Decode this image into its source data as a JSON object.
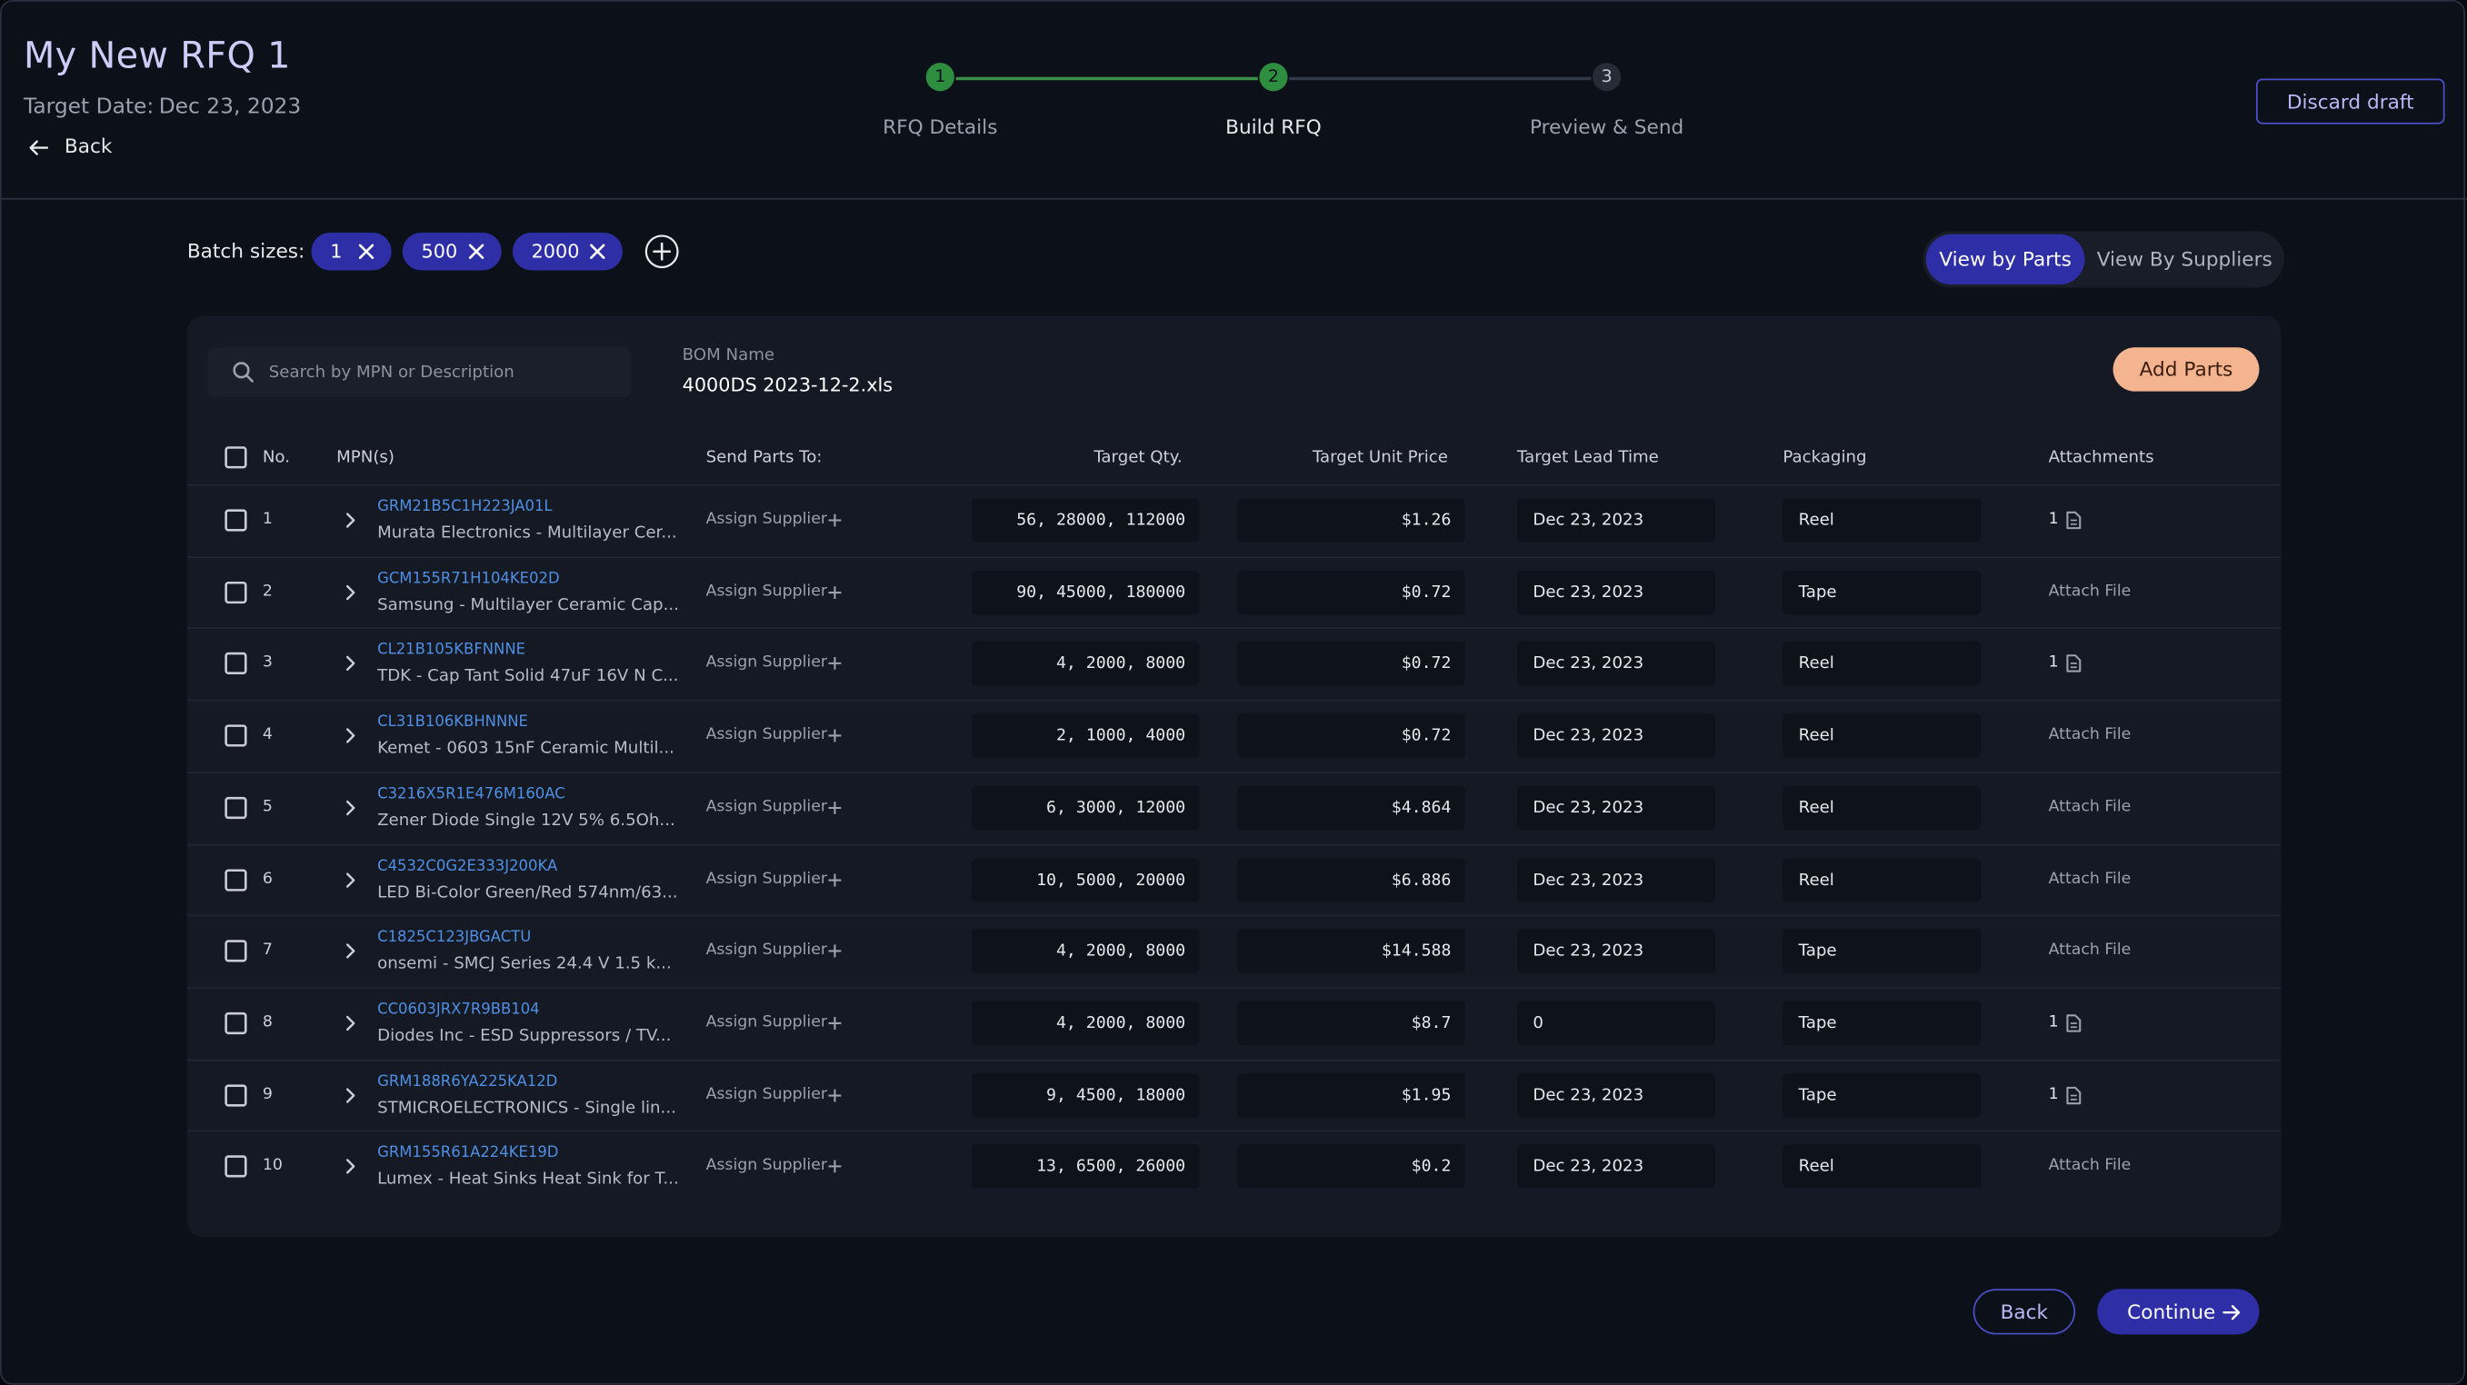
{
  "header": {
    "title": "My New RFQ 1",
    "target_date_label": "Target Date:",
    "target_date": "Dec 23, 2023",
    "back": "Back",
    "discard": "Discard draft"
  },
  "stepper": [
    {
      "number": "1",
      "label": "RFQ Details"
    },
    {
      "number": "2",
      "label": "Build RFQ"
    },
    {
      "number": "3",
      "label": "Preview & Send"
    }
  ],
  "batch": {
    "label": "Batch sizes:",
    "sizes": [
      "1",
      "500",
      "2000"
    ]
  },
  "view_toggle": [
    "View by Parts",
    "View By Suppliers"
  ],
  "toolbar": {
    "search_placeholder": "Search by MPN or Description",
    "bom_label": "BOM Name",
    "bom_name": "4000DS 2023-12-2.xls",
    "add_parts": "Add Parts"
  },
  "table": {
    "columns": [
      "No.",
      "MPN(s)",
      "Send Parts To:",
      "Target Qty.",
      "Target Unit Price",
      "Target Lead Time",
      "Packaging",
      "Attachments"
    ],
    "rows": [
      {
        "no": "1",
        "mpn": "GRM21B5C1H223JA01L",
        "description": "Murata Electronics - Multilayer Cer...",
        "send_to": "Assign Supplier",
        "qty": "56, 28000, 112000",
        "price": "$1.26",
        "lead_time": "Dec 23, 2023",
        "packaging": "Reel",
        "attachments": "1"
      },
      {
        "no": "2",
        "mpn": "GCM155R71H104KE02D",
        "description": "Samsung - Multilayer Ceramic Cap...",
        "send_to": "Assign Supplier",
        "qty": "90, 45000, 180000",
        "price": "$0.72",
        "lead_time": "Dec 23, 2023",
        "packaging": "Tape",
        "attachments": "Attach File"
      },
      {
        "no": "3",
        "mpn": "CL21B105KBFNNNE",
        "description": "TDK - Cap Tant Solid 47uF 16V N C...",
        "send_to": "Assign Supplier",
        "qty": "4, 2000, 8000",
        "price": "$0.72",
        "lead_time": "Dec 23, 2023",
        "packaging": "Reel",
        "attachments": "1"
      },
      {
        "no": "4",
        "mpn": "CL31B106KBHNNNE",
        "description": "Kemet - 0603 15nF Ceramic Multil...",
        "send_to": "Assign Supplier",
        "qty": "2, 1000, 4000",
        "price": "$0.72",
        "lead_time": "Dec 23, 2023",
        "packaging": "Reel",
        "attachments": "Attach File"
      },
      {
        "no": "5",
        "mpn": "C3216X5R1E476M160AC",
        "description": "Zener Diode Single 12V 5% 6.5Oh...",
        "send_to": "Assign Supplier",
        "qty": "6, 3000, 12000",
        "price": "$4.864",
        "lead_time": "Dec 23, 2023",
        "packaging": "Reel",
        "attachments": "Attach File"
      },
      {
        "no": "6",
        "mpn": "C4532C0G2E333J200KA",
        "description": "LED Bi-Color Green/Red 574nm/63...",
        "send_to": "Assign Supplier",
        "qty": "10, 5000, 20000",
        "price": "$6.886",
        "lead_time": "Dec 23, 2023",
        "packaging": "Reel",
        "attachments": "Attach File"
      },
      {
        "no": "7",
        "mpn": "C1825C123JBGACTU",
        "description": "onsemi - SMCJ Series 24.4 V 1.5 k...",
        "send_to": "Assign Supplier",
        "qty": "4, 2000, 8000",
        "price": "$14.588",
        "lead_time": "Dec 23, 2023",
        "packaging": "Tape",
        "attachments": "Attach File"
      },
      {
        "no": "8",
        "mpn": "CC0603JRX7R9BB104",
        "description": "Diodes Inc - ESD Suppressors / TV...",
        "send_to": "Assign Supplier",
        "qty": "4, 2000, 8000",
        "price": "$8.7",
        "lead_time": "0",
        "packaging": "Tape",
        "attachments": "1"
      },
      {
        "no": "9",
        "mpn": "GRM188R6YA225KA12D",
        "description": "STMICROELECTRONICS - Single lin...",
        "send_to": "Assign Supplier",
        "qty": "9, 4500, 18000",
        "price": "$1.95",
        "lead_time": "Dec 23, 2023",
        "packaging": "Tape",
        "attachments": "1"
      },
      {
        "no": "10",
        "mpn": "GRM155R61A224KE19D",
        "description": "Lumex - Heat Sinks Heat Sink for T...",
        "send_to": "Assign Supplier",
        "qty": "13, 6500, 26000",
        "price": "$0.2",
        "lead_time": "Dec 23, 2023",
        "packaging": "Reel",
        "attachments": "Attach File"
      }
    ]
  },
  "footer": {
    "back": "Back",
    "continue": "Continue"
  }
}
